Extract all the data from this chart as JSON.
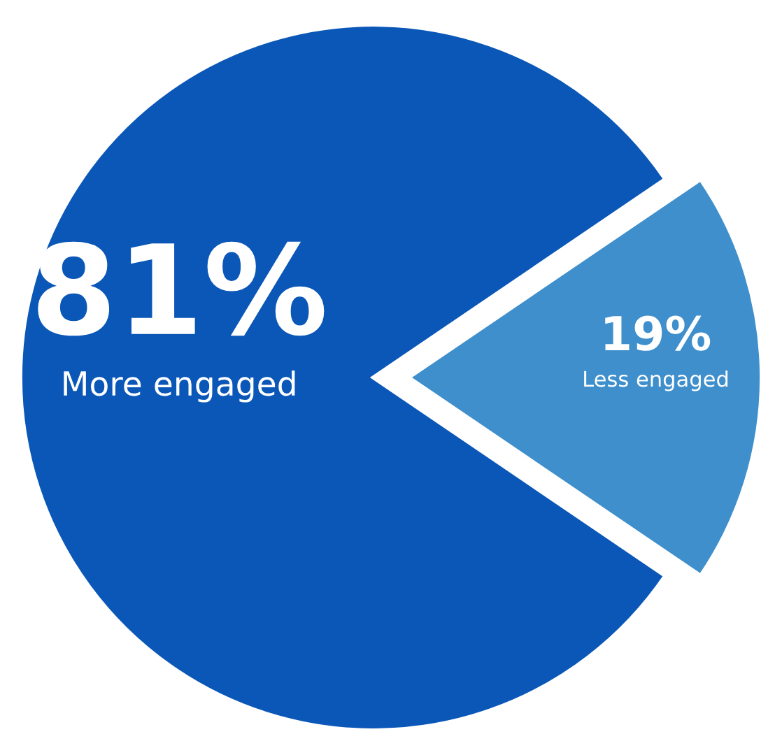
{
  "chart_data": {
    "type": "pie",
    "categories": [
      "More engaged",
      "Less engaged"
    ],
    "values": [
      81,
      19
    ],
    "value_labels": [
      "81%",
      "19%"
    ],
    "colors": [
      "#0a57b8",
      "#3e8fcc"
    ]
  }
}
